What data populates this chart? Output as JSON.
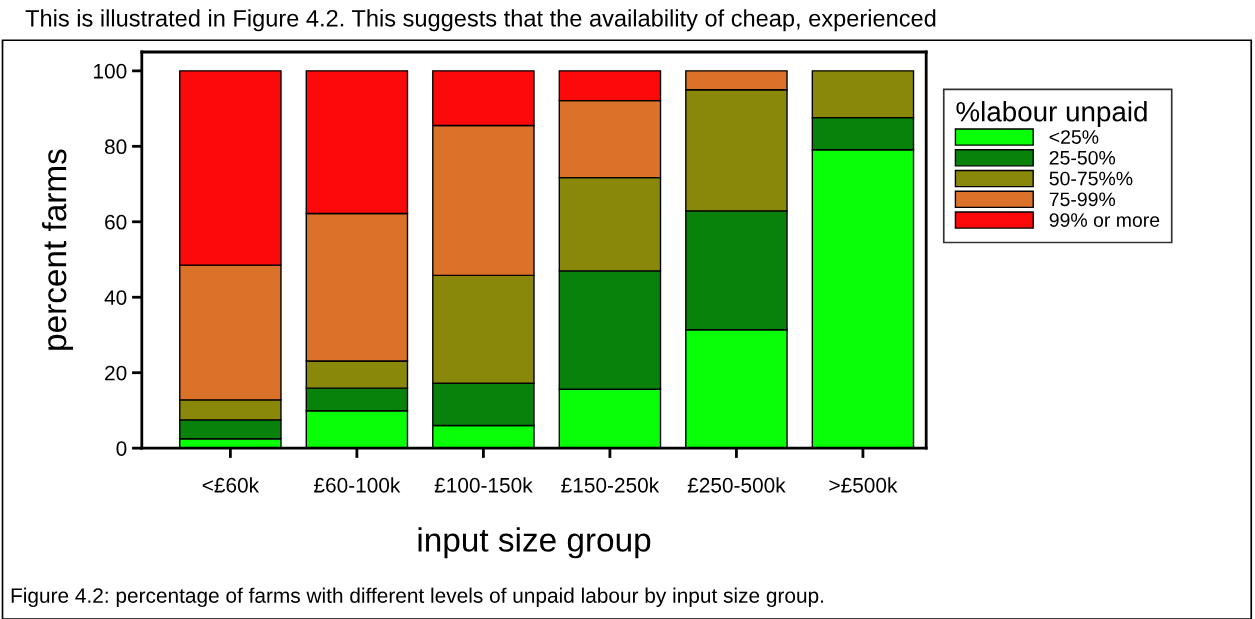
{
  "chart_data": {
    "type": "bar",
    "stacked": true,
    "xlabel": "input size group",
    "ylabel": "percent farms",
    "legend_title": "%labour unpaid",
    "categories": [
      "<£60k",
      "£60-100k",
      "£100-150k",
      "£150-250k",
      "£250-500k",
      ">£500k"
    ],
    "series": [
      {
        "name": "<25%",
        "color": "#08ff08",
        "values": [
          2.5,
          9.9,
          6.0,
          15.6,
          31.4,
          79.1
        ]
      },
      {
        "name": "25-50%",
        "color": "#08820a",
        "values": [
          5.0,
          6.0,
          11.2,
          31.4,
          31.5,
          8.5
        ]
      },
      {
        "name": "50-75%%",
        "color": "#8a880a",
        "values": [
          5.3,
          7.2,
          28.6,
          24.7,
          32.1,
          12.4
        ]
      },
      {
        "name": "75-99%",
        "color": "#db722a",
        "values": [
          35.7,
          39.1,
          39.7,
          20.4,
          5.0,
          null
        ]
      },
      {
        "name": "99% or more",
        "color": "#fc0a0a",
        "values": [
          51.5,
          37.8,
          14.5,
          7.9,
          null,
          null
        ]
      }
    ],
    "ylim": [
      0,
      105
    ],
    "yticks": [
      0,
      20,
      40,
      60,
      80,
      100
    ],
    "grid": false,
    "legend": "right",
    "annotations": [
      "This is illustrated in Figure 4.2. This suggests that the availability of cheap, experienced",
      "Figure 4.2: percentage of farms with different levels of unpaid labour by input size group."
    ]
  }
}
